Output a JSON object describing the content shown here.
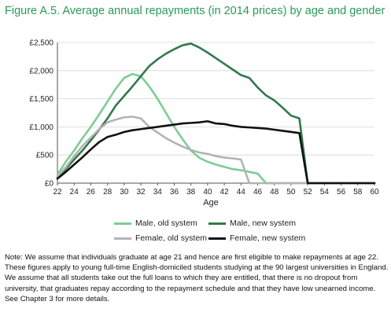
{
  "figure": {
    "title": "Figure A.5. Average annual repayments (in 2014 prices) by age and gender",
    "title_color": "#2a9a57"
  },
  "chart_data": {
    "type": "line",
    "xlabel": "Age",
    "ylabel": "",
    "xlim": [
      22,
      60
    ],
    "ylim": [
      0,
      2500
    ],
    "x_ticks": [
      22,
      24,
      26,
      28,
      30,
      32,
      34,
      36,
      38,
      40,
      42,
      44,
      46,
      48,
      50,
      52,
      54,
      56,
      58,
      60
    ],
    "y_ticks": [
      0,
      500,
      1000,
      1500,
      2000,
      2500
    ],
    "y_tick_labels": [
      "£0",
      "£500",
      "£1,000",
      "£1,500",
      "£2,000",
      "£2,500"
    ],
    "grid": true,
    "legend_position": "bottom",
    "x": [
      22,
      23,
      24,
      25,
      26,
      27,
      28,
      29,
      30,
      31,
      32,
      33,
      34,
      35,
      36,
      37,
      38,
      39,
      40,
      41,
      42,
      43,
      44,
      45,
      46,
      47,
      48,
      49,
      50,
      51,
      52,
      53,
      54,
      55,
      56,
      57,
      58,
      59,
      60
    ],
    "series": [
      {
        "name": "Male, old system",
        "color": "#7dcd94",
        "values": [
          150,
          380,
          580,
          800,
          1000,
          1220,
          1450,
          1680,
          1870,
          1940,
          1900,
          1720,
          1500,
          1250,
          1000,
          780,
          580,
          450,
          380,
          330,
          290,
          250,
          230,
          200,
          170,
          0,
          0,
          0,
          0,
          0,
          0,
          0,
          0,
          0,
          0,
          0,
          0,
          0,
          0
        ]
      },
      {
        "name": "Male, new system",
        "color": "#2f7a4e",
        "values": [
          100,
          250,
          420,
          580,
          760,
          950,
          1150,
          1380,
          1550,
          1720,
          1900,
          2080,
          2200,
          2300,
          2380,
          2450,
          2480,
          2410,
          2320,
          2220,
          2120,
          2020,
          1920,
          1870,
          1700,
          1560,
          1470,
          1340,
          1200,
          1150,
          0,
          0,
          0,
          0,
          0,
          0,
          0,
          0,
          0
        ]
      },
      {
        "name": "Female, old system",
        "color": "#b3b3b3",
        "values": [
          120,
          280,
          480,
          660,
          810,
          960,
          1080,
          1130,
          1170,
          1180,
          1150,
          1000,
          900,
          800,
          720,
          650,
          590,
          545,
          520,
          480,
          455,
          440,
          420,
          0,
          0,
          0,
          0,
          0,
          0,
          0,
          0,
          0,
          0,
          0,
          0,
          0,
          0,
          0,
          0
        ]
      },
      {
        "name": "Female, new system",
        "color": "#111111",
        "values": [
          80,
          200,
          330,
          460,
          600,
          730,
          820,
          860,
          910,
          940,
          960,
          980,
          1000,
          1020,
          1040,
          1060,
          1070,
          1080,
          1100,
          1060,
          1050,
          1020,
          1000,
          990,
          980,
          970,
          950,
          930,
          910,
          890,
          0,
          0,
          0,
          0,
          0,
          0,
          0,
          0,
          0
        ]
      }
    ]
  },
  "note": "Note: We assume that individuals graduate at age 21 and hence are first eligible to make repayments at age 22. These figures apply to young full-time English-domiciled students studying at the 90 largest universities in England. We assume that all students take out the full loans to which they are entitled, that there is no dropout from university, that graduates repay according to the repayment schedule and that they have low unearned income. See Chapter 3 for more details."
}
